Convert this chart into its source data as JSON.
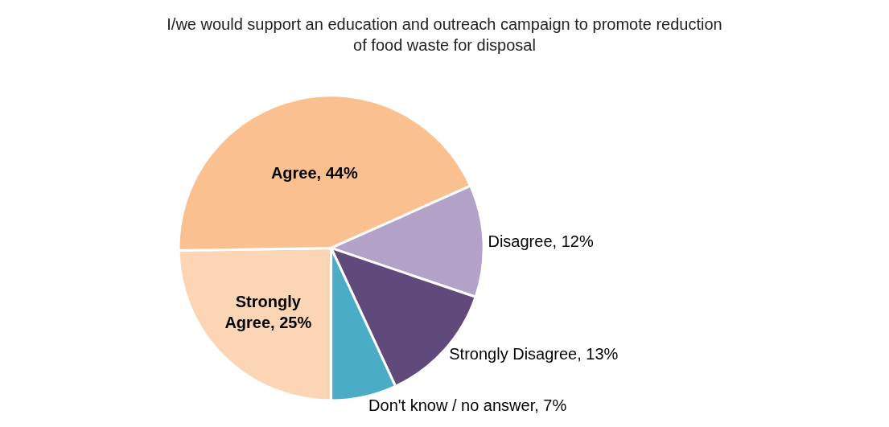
{
  "chart_data": {
    "type": "pie",
    "title": "I/we would support an education and outreach campaign to promote reduction of food waste for disposal",
    "categories": [
      "Strongly Agree",
      "Agree",
      "Disagree",
      "Strongly Disagree",
      "Don't know / no answer"
    ],
    "values": [
      25,
      44,
      12,
      13,
      7
    ],
    "value_labels": [
      "25%",
      "44%",
      "12%",
      "13%",
      "7%"
    ],
    "colors": [
      "#fcd5b4",
      "#fac090",
      "#b3a2c7",
      "#604a7b",
      "#4bacc6"
    ],
    "legend": false
  }
}
